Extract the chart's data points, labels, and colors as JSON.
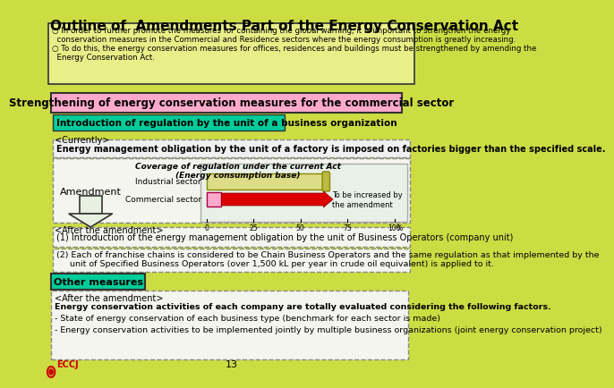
{
  "title": "Outline of  Amendments Part of the Energy Conservation Act",
  "bg_color": "#ccdd44",
  "title_color": "#000000",
  "bullet1": "In order to further promote the measures for containing the global warning, it is important to strengthen the energy\n  conservation measures in the Commercial and Residence sectors where the energy consumption is greatly increasing.",
  "bullet2": "To do this, the energy conservation measures for offices, residences and buildings must be strengthened by amending the\n  Energy Conservation Act.",
  "section1_title": "Strengthening of energy conservation measures for the commercial sector",
  "section1_bg": "#ffaacc",
  "subsection1_title": "Introduction of regulation by the unit of a business organization",
  "subsection1_bg": "#00cc99",
  "currently_label": "<Currently>",
  "currently_text": "Energy management obligation by the unit of a factory is imposed on factories bigger than the specified scale.",
  "coverage_label": "Coverage of regulation under the current Act\n(Energy consumption base)",
  "amendment_label": "Amendment",
  "industrial_label": "Industrial sector",
  "commercial_label": "Commercial sector",
  "after_label": "<After the amendment>",
  "to_be_increased": "To be increased by\nthe amendment",
  "item1": "(1) Introduction of the energy management obligation by the unit of Business Operators (company unit)",
  "item2": "(2) Each of franchise chains is considered to be Chain Business Operators and the same regulation as that implemented by the\n     unit of Specified Business Operators (over 1,500 kL per year in crude oil equivalent) is applied to it.",
  "other_title": "Other measures",
  "other_bg": "#00cc99",
  "other_after": "<After the amendment>",
  "other_text1": "Energy conservation activities of each company are totally evaluated considering the following factors.",
  "other_text2": "- State of energy conservation of each business type (benchmark for each sector is made)",
  "other_text3": "- Energy conservation activities to be implemented jointly by multiple business organizations (joint energy conservation project)",
  "eccj_text": "ECCJ",
  "page_num": "13",
  "dashed_border": "#888888",
  "industrial_bar_color": "#dddd88",
  "commercial_bar_color": "#ffaacc",
  "arrow_color": "#dd0000"
}
